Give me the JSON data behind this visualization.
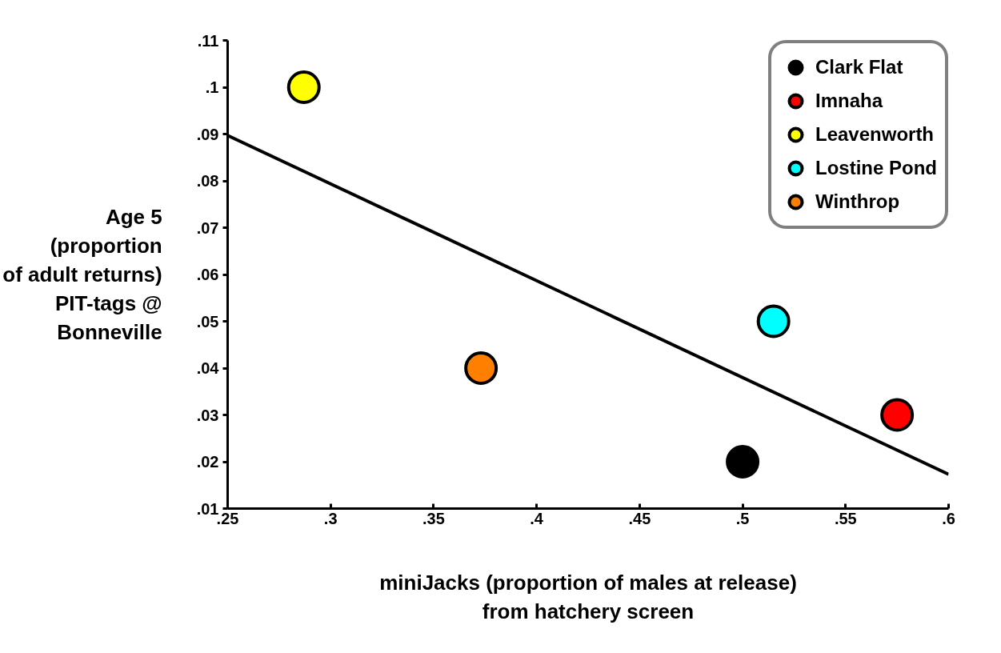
{
  "chart_data": {
    "type": "scatter",
    "xlabel": "miniJacks (proportion of males at release)\nfrom hatchery screen",
    "ylabel": "Age 5\n(proportion\nof adult returns)\nPIT-tags @\nBonneville",
    "xlim": [
      0.25,
      0.6
    ],
    "ylim": [
      0.01,
      0.11
    ],
    "xticks": [
      {
        "value": 0.25,
        "label": ".25"
      },
      {
        "value": 0.3,
        "label": ".3"
      },
      {
        "value": 0.35,
        "label": ".35"
      },
      {
        "value": 0.4,
        "label": ".4"
      },
      {
        "value": 0.45,
        "label": ".45"
      },
      {
        "value": 0.5,
        "label": ".5"
      },
      {
        "value": 0.55,
        "label": ".55"
      },
      {
        "value": 0.6,
        "label": ".6"
      }
    ],
    "yticks": [
      {
        "value": 0.01,
        "label": ".01"
      },
      {
        "value": 0.02,
        "label": ".02"
      },
      {
        "value": 0.03,
        "label": ".03"
      },
      {
        "value": 0.04,
        "label": ".04"
      },
      {
        "value": 0.05,
        "label": ".05"
      },
      {
        "value": 0.06,
        "label": ".06"
      },
      {
        "value": 0.07,
        "label": ".07"
      },
      {
        "value": 0.08,
        "label": ".08"
      },
      {
        "value": 0.09,
        "label": ".09"
      },
      {
        "value": 0.1,
        "label": ".1"
      },
      {
        "value": 0.11,
        "label": ".11"
      }
    ],
    "grid": false,
    "legend": "top right",
    "marker": "circle",
    "series": [
      {
        "name": "Clark Flat",
        "color": "#000000",
        "x": [
          0.5
        ],
        "values": [
          0.02
        ]
      },
      {
        "name": "Imnaha",
        "color": "#ff0000",
        "x": [
          0.575
        ],
        "values": [
          0.03
        ]
      },
      {
        "name": "Leavenworth",
        "color": "#ffff00",
        "x": [
          0.287
        ],
        "values": [
          0.1
        ]
      },
      {
        "name": "Lostine Pond",
        "color": "#00ffff",
        "x": [
          0.515
        ],
        "values": [
          0.05
        ]
      },
      {
        "name": "Winthrop",
        "color": "#ff8000",
        "x": [
          0.373
        ],
        "values": [
          0.04
        ]
      },
      {
        "type": "line",
        "color": "#000000",
        "x": [
          0.25,
          0.6
        ],
        "values": [
          0.0897,
          0.0173
        ],
        "line_style": "solid",
        "marker": "none"
      }
    ]
  }
}
